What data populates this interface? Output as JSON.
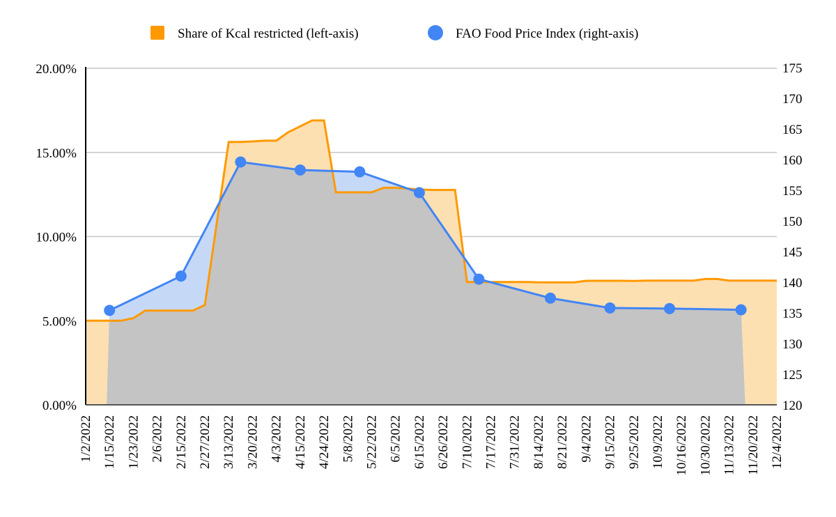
{
  "chart_data": {
    "type": "area",
    "title": "",
    "legend_position": "top",
    "x_labels": [
      "1/2/2022",
      "1/15/2022",
      "1/23/2022",
      "2/6/2022",
      "2/15/2022",
      "2/27/2022",
      "3/13/2022",
      "3/20/2022",
      "4/3/2022",
      "4/15/2022",
      "4/24/2022",
      "5/8/2022",
      "5/22/2022",
      "6/5/2022",
      "6/15/2022",
      "6/26/2022",
      "7/10/2022",
      "7/17/2022",
      "7/31/2022",
      "8/14/2022",
      "8/21/2022",
      "9/4/2022",
      "9/15/2022",
      "9/25/2022",
      "10/9/2022",
      "10/16/2022",
      "10/30/2022",
      "11/13/2022",
      "11/20/2022",
      "12/4/2022"
    ],
    "n_points": 59,
    "left_axis": {
      "ylim": [
        0,
        20
      ],
      "ticks": [
        "0.00%",
        "5.00%",
        "10.00%",
        "15.00%",
        "20.00%"
      ],
      "tick_values": [
        0,
        5,
        10,
        15,
        20
      ]
    },
    "right_axis": {
      "ylim": [
        120,
        175
      ],
      "ticks": [
        "120",
        "125",
        "130",
        "135",
        "140",
        "145",
        "150",
        "155",
        "160",
        "165",
        "170",
        "175"
      ],
      "tick_values": [
        120,
        125,
        130,
        135,
        140,
        145,
        150,
        155,
        160,
        165,
        170,
        175
      ]
    },
    "grid": true,
    "series": [
      {
        "name": "Share of Kcal restricted (left-axis)",
        "axis": "left",
        "color": "#ff9900",
        "fill": "#fde0b2",
        "values": [
          5.0,
          5.0,
          5.0,
          5.0,
          5.15,
          5.6,
          5.6,
          5.6,
          5.6,
          5.6,
          5.93,
          10.8,
          15.62,
          15.62,
          15.65,
          15.7,
          15.7,
          16.2,
          16.55,
          16.9,
          16.9,
          12.63,
          12.63,
          12.63,
          12.63,
          12.9,
          12.9,
          12.85,
          12.8,
          12.77,
          12.77,
          12.77,
          7.3,
          7.3,
          7.3,
          7.3,
          7.3,
          7.3,
          7.28,
          7.28,
          7.28,
          7.28,
          7.37,
          7.37,
          7.37,
          7.37,
          7.36,
          7.38,
          7.38,
          7.38,
          7.38,
          7.38,
          7.48,
          7.48,
          7.38,
          7.38,
          7.38,
          7.38,
          7.38
        ]
      },
      {
        "name": "FAO Food Price Index (right-axis)",
        "axis": "right",
        "color": "#4285f4",
        "fill": "#c5d9f7",
        "indices": [
          2,
          8,
          13,
          18,
          23,
          28,
          33,
          39,
          44,
          49,
          55
        ],
        "values": [
          135.4,
          141.0,
          159.6,
          158.3,
          158.0,
          154.6,
          140.5,
          137.4,
          135.8,
          135.7,
          135.5
        ]
      }
    ]
  }
}
